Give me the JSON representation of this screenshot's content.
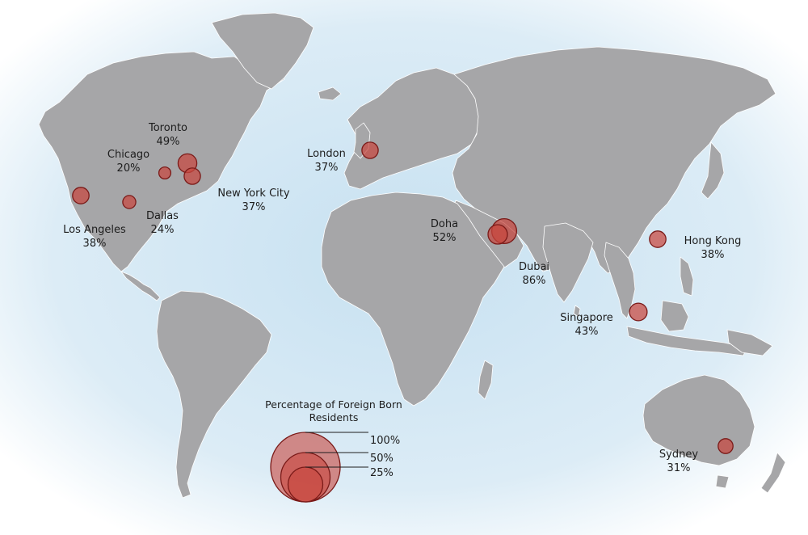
{
  "map": {
    "ocean_color": "#d4e8f4",
    "land_color": "#a6a6a8",
    "border_color": "#ffffff",
    "bubble_fill": "#c8463e",
    "bubble_stroke": "#7a1a18"
  },
  "cities": [
    {
      "id": "toronto",
      "name": "Toronto",
      "percent": 49,
      "value_label": "49%"
    },
    {
      "id": "chicago",
      "name": "Chicago",
      "percent": 20,
      "value_label": "20%"
    },
    {
      "id": "new-york-city",
      "name": "New York City",
      "percent": 37,
      "value_label": "37%"
    },
    {
      "id": "los-angeles",
      "name": "Los Angeles",
      "percent": 38,
      "value_label": "38%"
    },
    {
      "id": "dallas",
      "name": "Dallas",
      "percent": 24,
      "value_label": "24%"
    },
    {
      "id": "london",
      "name": "London",
      "percent": 37,
      "value_label": "37%"
    },
    {
      "id": "doha",
      "name": "Doha",
      "percent": 52,
      "value_label": "52%"
    },
    {
      "id": "dubai",
      "name": "Dubai",
      "percent": 86,
      "value_label": "86%"
    },
    {
      "id": "hong-kong",
      "name": "Hong Kong",
      "percent": 38,
      "value_label": "38%"
    },
    {
      "id": "singapore",
      "name": "Singapore",
      "percent": 43,
      "value_label": "43%"
    },
    {
      "id": "sydney",
      "name": "Sydney",
      "percent": 31,
      "value_label": "31%"
    }
  ],
  "legend": {
    "title": "Percentage of Foreign Born Residents",
    "entries": [
      {
        "percent": 100,
        "label": "100%"
      },
      {
        "percent": 50,
        "label": "50%"
      },
      {
        "percent": 25,
        "label": "25%"
      }
    ]
  }
}
